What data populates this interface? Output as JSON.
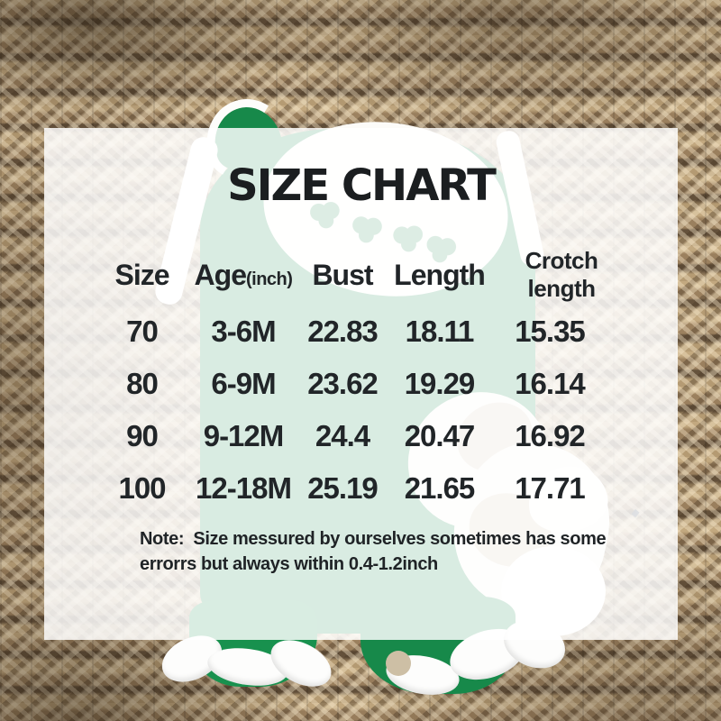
{
  "chart_data": {
    "type": "table",
    "title": "SIZE CHART",
    "columns": [
      "Size",
      "Age(inch)",
      "Bust",
      "Length",
      "Crotch length"
    ],
    "header_display": {
      "size": "Size",
      "age": "Age",
      "age_unit": "(inch)",
      "bust": "Bust",
      "length": "Length",
      "crotch_line1": "Crotch",
      "crotch_line2": "length"
    },
    "rows": [
      [
        "70",
        "3-6M",
        "22.83",
        "18.11",
        "15.35"
      ],
      [
        "80",
        "6-9M",
        "23.62",
        "19.29",
        "16.14"
      ],
      [
        "90",
        "9-12M",
        "24.4",
        "20.47",
        "16.92"
      ],
      [
        "100",
        "12-18M",
        "25.19",
        "21.65",
        "17.71"
      ]
    ],
    "note": "Note:  Size messured by ourselves sometimes has some errorrs but always within 0.4-1.2inch",
    "note_lines": [
      "Note:  Size messured by ourselves sometimes has some",
      "errorrs but always within 0.4-1.2inch"
    ]
  },
  "scene": {
    "background": "woven jute basket texture",
    "garment": "green baby romper with white ruffle trim and shamrock smocked collar",
    "shoes": "white baby shoes",
    "garment_color": "#17894a",
    "trim_color": "#ffffff",
    "panel_overlay_color": "rgba(255,255,255,0.84)",
    "text_color": "#212528"
  }
}
